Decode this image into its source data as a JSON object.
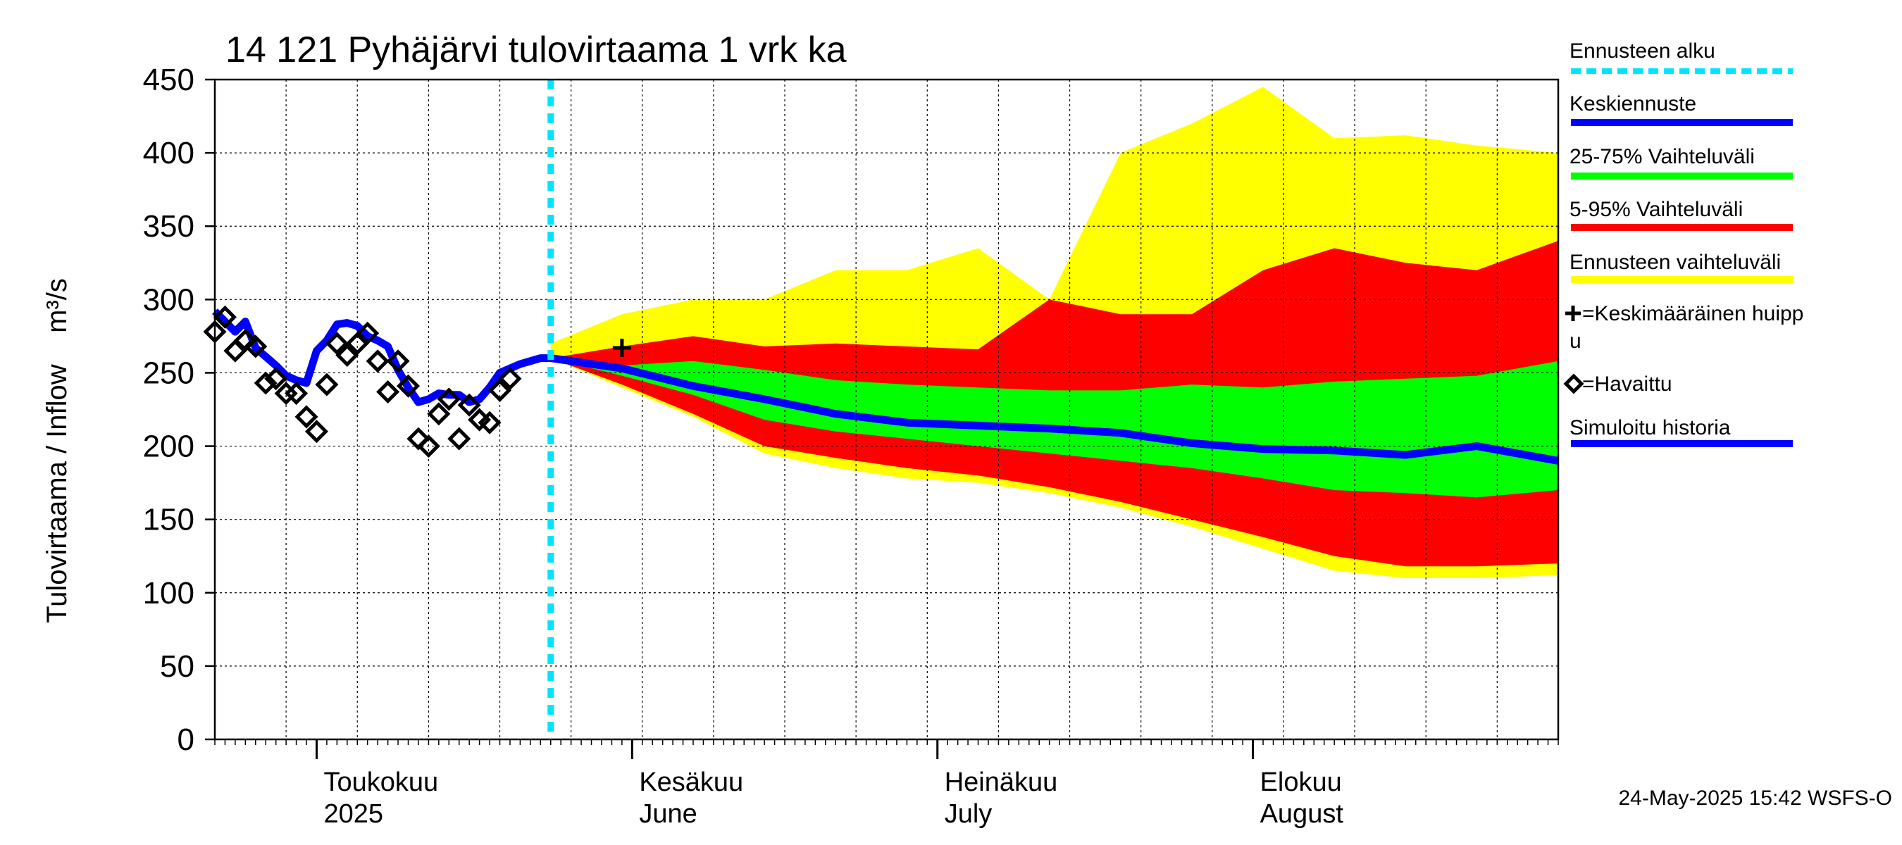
{
  "chart_data": {
    "type": "area",
    "title": "14 121 Pyhäjärvi tulovirtaama 1 vrk ka",
    "ylabel": "Tulovirtaama / Inflow    m³/s",
    "xlabel": "",
    "ylim": [
      0,
      450
    ],
    "yticks": [
      "0",
      "50",
      "100",
      "150",
      "200",
      "250",
      "300",
      "350",
      "400",
      "450"
    ],
    "xlim": [
      "2025-04-21",
      "2025-08-31"
    ],
    "month_labels": [
      {
        "date": "2025-05-01",
        "line1": "Toukokuu",
        "line2": "2025"
      },
      {
        "date": "2025-06-01",
        "line1": "Kesäkuu",
        "line2": "June"
      },
      {
        "date": "2025-07-01",
        "line1": "Heinäkuu",
        "line2": "July"
      },
      {
        "date": "2025-08-01",
        "line1": "Elokuu",
        "line2": "August"
      }
    ],
    "grid": true,
    "legend_position": "right",
    "forecast_start": "2025-05-24",
    "colors": {
      "forecast_start": "#00e5ff",
      "mean_forecast": "#0000ff",
      "band_25_75": "#00ff00",
      "band_5_95": "#ff0000",
      "band_range": "#ffff00",
      "simulated_history": "#0000ff",
      "observed": "#000000"
    },
    "series": [
      {
        "name": "Simuloitu historia",
        "x": [
          "2025-04-21",
          "2025-04-22",
          "2025-04-23",
          "2025-04-24",
          "2025-04-25",
          "2025-04-26",
          "2025-04-27",
          "2025-04-28",
          "2025-04-29",
          "2025-04-30",
          "2025-05-01",
          "2025-05-02",
          "2025-05-03",
          "2025-05-04",
          "2025-05-05",
          "2025-05-06",
          "2025-05-07",
          "2025-05-08",
          "2025-05-09",
          "2025-05-10",
          "2025-05-11",
          "2025-05-12",
          "2025-05-13",
          "2025-05-14",
          "2025-05-15",
          "2025-05-16",
          "2025-05-17",
          "2025-05-18",
          "2025-05-19",
          "2025-05-20",
          "2025-05-21",
          "2025-05-22",
          "2025-05-23",
          "2025-05-24"
        ],
        "values": [
          292,
          285,
          278,
          285,
          267,
          261,
          255,
          248,
          245,
          243,
          265,
          272,
          283,
          284,
          282,
          275,
          272,
          268,
          252,
          240,
          230,
          232,
          236,
          235,
          235,
          230,
          232,
          240,
          250,
          253,
          256,
          258,
          260,
          260
        ]
      },
      {
        "name": "Keskiennuste",
        "x": [
          "2025-05-24",
          "2025-05-31",
          "2025-06-07",
          "2025-06-14",
          "2025-06-21",
          "2025-06-28",
          "2025-07-05",
          "2025-07-12",
          "2025-07-19",
          "2025-07-26",
          "2025-08-02",
          "2025-08-09",
          "2025-08-16",
          "2025-08-23",
          "2025-08-31"
        ],
        "values": [
          260,
          253,
          241,
          232,
          222,
          216,
          214,
          212,
          209,
          202,
          198,
          197,
          194,
          200,
          190
        ]
      },
      {
        "name": "25-75% Vaihteluväli",
        "x": [
          "2025-05-24",
          "2025-05-31",
          "2025-06-07",
          "2025-06-14",
          "2025-06-21",
          "2025-06-28",
          "2025-07-05",
          "2025-07-12",
          "2025-07-19",
          "2025-07-26",
          "2025-08-02",
          "2025-08-09",
          "2025-08-16",
          "2025-08-23",
          "2025-08-31"
        ],
        "low": [
          260,
          248,
          235,
          218,
          210,
          205,
          200,
          195,
          190,
          185,
          178,
          170,
          168,
          165,
          170
        ],
        "high": [
          260,
          255,
          258,
          252,
          245,
          242,
          240,
          238,
          238,
          242,
          240,
          244,
          246,
          248,
          258
        ]
      },
      {
        "name": "5-95% Vaihteluväli",
        "x": [
          "2025-05-24",
          "2025-05-31",
          "2025-06-07",
          "2025-06-14",
          "2025-06-21",
          "2025-06-28",
          "2025-07-05",
          "2025-07-12",
          "2025-07-19",
          "2025-07-26",
          "2025-08-02",
          "2025-08-09",
          "2025-08-16",
          "2025-08-23",
          "2025-08-31"
        ],
        "low": [
          260,
          242,
          222,
          200,
          192,
          185,
          180,
          172,
          162,
          150,
          138,
          125,
          118,
          118,
          120
        ],
        "high": [
          260,
          268,
          275,
          268,
          270,
          268,
          266,
          300,
          290,
          290,
          320,
          335,
          325,
          320,
          340
        ]
      },
      {
        "name": "Ennusteen vaihteluväli",
        "x": [
          "2025-05-24",
          "2025-05-31",
          "2025-06-07",
          "2025-06-14",
          "2025-06-21",
          "2025-06-28",
          "2025-07-05",
          "2025-07-12",
          "2025-07-19",
          "2025-07-26",
          "2025-08-02",
          "2025-08-09",
          "2025-08-16",
          "2025-08-23",
          "2025-08-31"
        ],
        "low": [
          260,
          240,
          220,
          195,
          185,
          178,
          175,
          168,
          158,
          145,
          130,
          115,
          110,
          110,
          112
        ],
        "high": [
          270,
          290,
          300,
          300,
          320,
          320,
          335,
          300,
          400,
          420,
          445,
          410,
          412,
          405,
          400
        ]
      },
      {
        "name": "Havaittu",
        "x": [
          "2025-04-21",
          "2025-04-22",
          "2025-04-23",
          "2025-04-24",
          "2025-04-25",
          "2025-04-26",
          "2025-04-27",
          "2025-04-28",
          "2025-04-29",
          "2025-04-30",
          "2025-05-01",
          "2025-05-02",
          "2025-05-03",
          "2025-05-04",
          "2025-05-05",
          "2025-05-06",
          "2025-05-07",
          "2025-05-08",
          "2025-05-09",
          "2025-05-10",
          "2025-05-11",
          "2025-05-12",
          "2025-05-13",
          "2025-05-14",
          "2025-05-15",
          "2025-05-16",
          "2025-05-17",
          "2025-05-18",
          "2025-05-19",
          "2025-05-20",
          "2025-05-21",
          "2025-05-22",
          "2025-05-23"
        ],
        "values": [
          278,
          288,
          265,
          272,
          268,
          243,
          246,
          236,
          236,
          220,
          210,
          242,
          270,
          262,
          270,
          277,
          258,
          237,
          258,
          241,
          205,
          200,
          222,
          232,
          205,
          228,
          218,
          216,
          238,
          246,
          null,
          null,
          null
        ]
      },
      {
        "name": "=Keskimääräinen huippu",
        "x": [
          "2025-05-31"
        ],
        "values": [
          267
        ]
      }
    ]
  },
  "legend": [
    {
      "key": "forecast_start",
      "label": "Ennusteen alku",
      "style": "dashed",
      "color": "#00e5ff"
    },
    {
      "key": "mean_forecast",
      "label": "Keskiennuste",
      "style": "line",
      "color": "#0000ff"
    },
    {
      "key": "band_25_75",
      "label": "25-75% Vaihteluväli",
      "style": "line",
      "color": "#00ff00"
    },
    {
      "key": "band_5_95",
      "label": "5-95% Vaihteluväli",
      "style": "line",
      "color": "#ff0000"
    },
    {
      "key": "band_range",
      "label": "Ennusteen vaihteluväli",
      "style": "line",
      "color": "#ffff00"
    },
    {
      "key": "peak",
      "label": "=Keskimääräinen huipp",
      "label_cont": "u",
      "style": "plus",
      "color": "#000000"
    },
    {
      "key": "observed",
      "label": "=Havaittu",
      "style": "diamond",
      "color": "#000000"
    },
    {
      "key": "simulated_history",
      "label": "Simuloitu historia",
      "style": "line",
      "color": "#0000ff"
    }
  ],
  "timestamp": "24-May-2025 15:42 WSFS-O"
}
